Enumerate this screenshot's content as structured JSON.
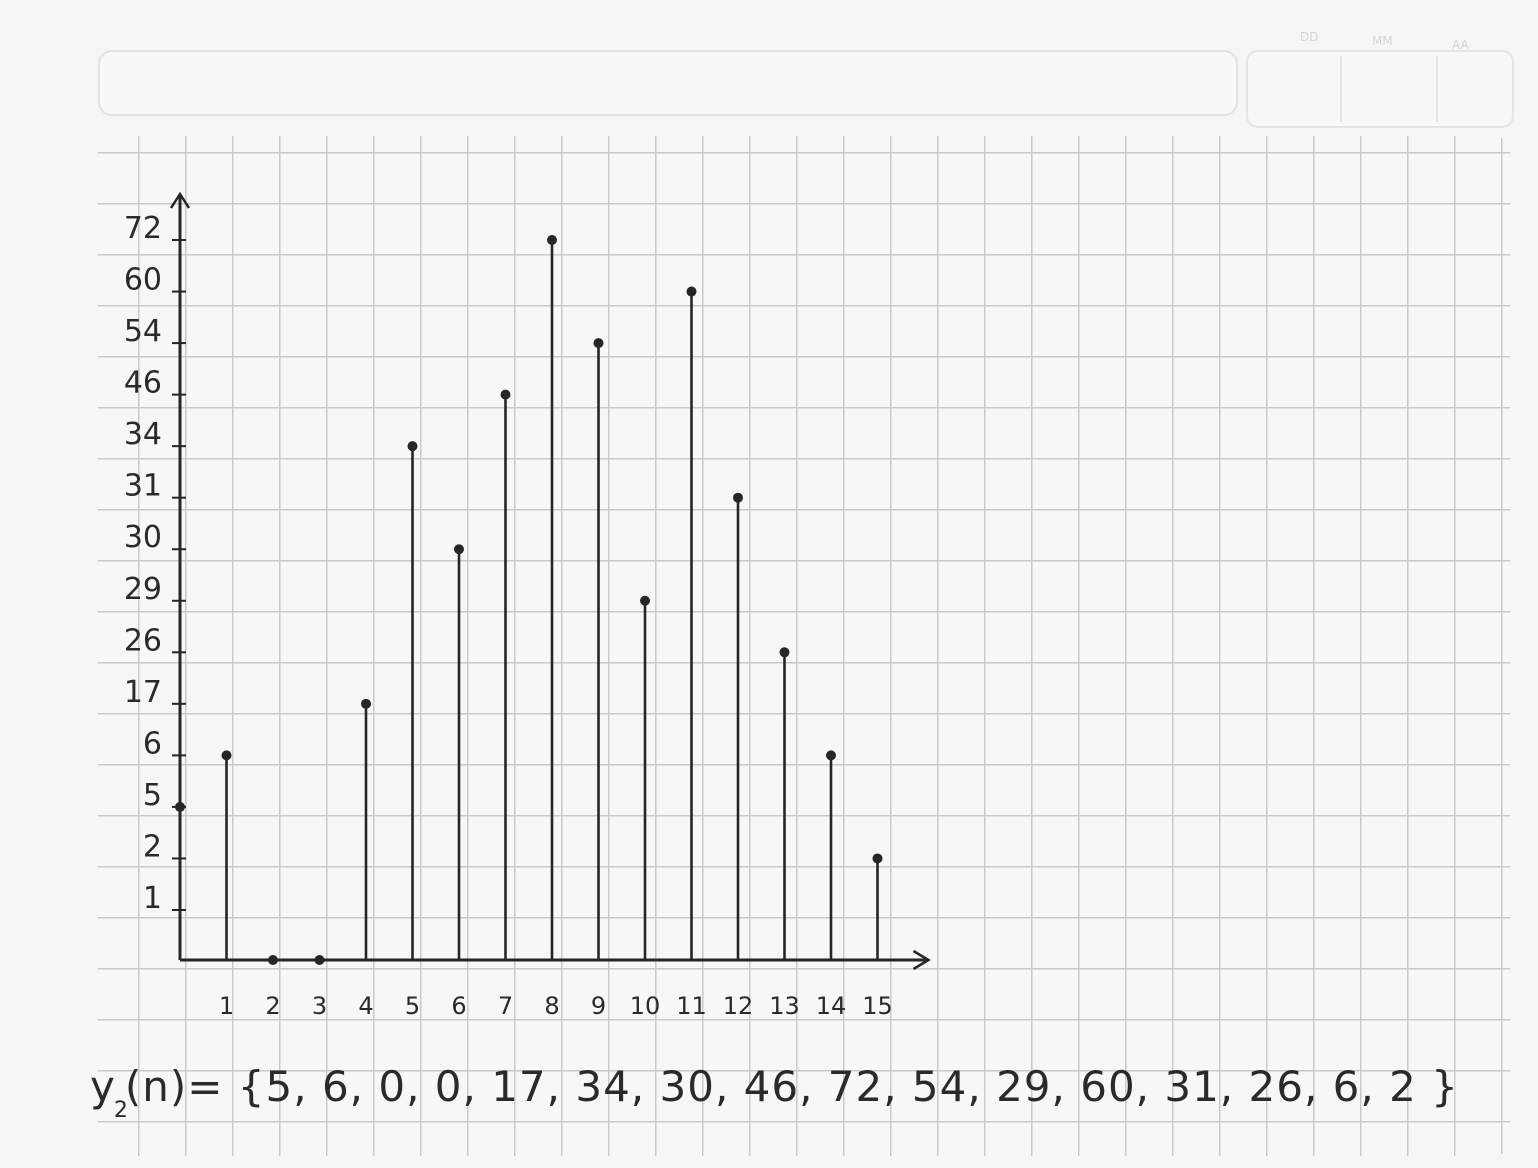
{
  "header": {
    "date_labels": [
      "DD",
      "MM",
      "AA"
    ]
  },
  "chart_data": {
    "type": "stem",
    "title": "",
    "xlabel": "",
    "ylabel": "",
    "x": [
      0,
      1,
      2,
      3,
      4,
      5,
      6,
      7,
      8,
      9,
      10,
      11,
      12,
      13,
      14,
      15
    ],
    "values": [
      5,
      6,
      0,
      0,
      17,
      34,
      30,
      46,
      72,
      54,
      29,
      60,
      31,
      26,
      6,
      2
    ],
    "x_tick_labels": [
      "1",
      "2",
      "3",
      "4",
      "5",
      "6",
      "7",
      "8",
      "9",
      "10",
      "11",
      "12",
      "13",
      "14",
      "15"
    ],
    "y_tick_labels": [
      "72",
      "60",
      "54",
      "46",
      "34",
      "31",
      "30",
      "29",
      "26",
      "17",
      "6",
      "5",
      "2",
      "1"
    ],
    "y_axis_scale": "categorical (ticks placed at equal spacing, labels in the order written)"
  },
  "formula": {
    "lhs_main": "y",
    "lhs_sub": "2",
    "lhs_rest": "(n)= {",
    "values_text": "5, 6, 0, 0, 17, 34, 30, 46, 72, 54, 29, 60, 31, 26, 6, 2",
    "close": " }"
  }
}
